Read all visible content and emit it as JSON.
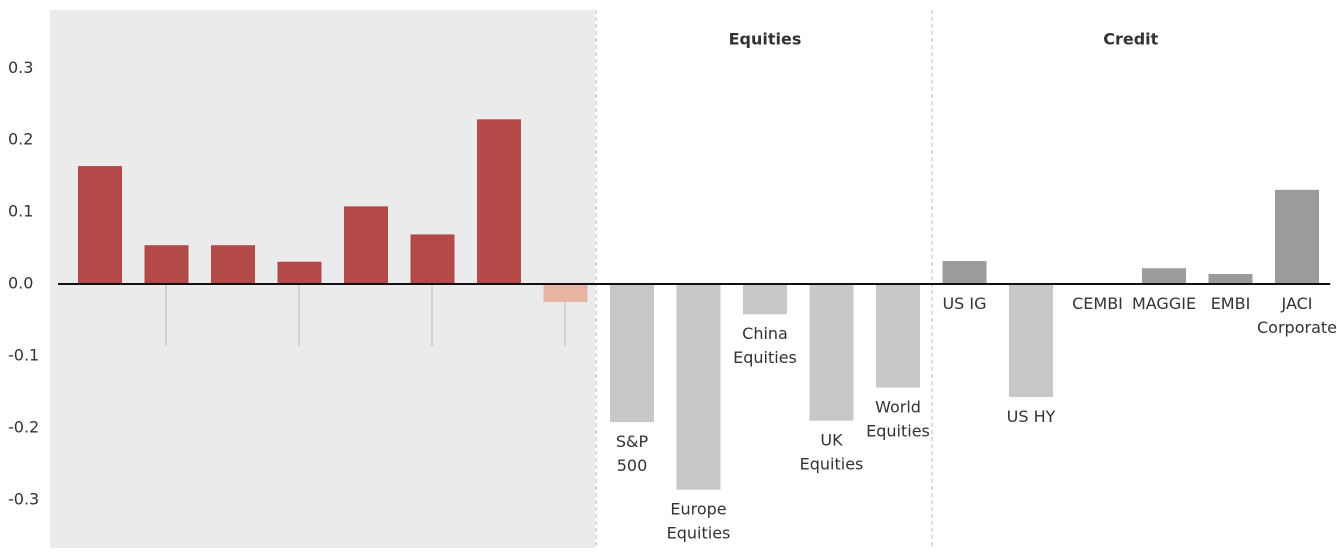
{
  "chart_data": {
    "type": "bar",
    "groups": [
      {
        "label": "Equities",
        "from": 8,
        "to": 12
      },
      {
        "label": "Credit",
        "from": 13,
        "to": 18
      }
    ],
    "categories": [
      null,
      null,
      null,
      null,
      null,
      null,
      null,
      null,
      "S&P\n500",
      "Europe\nEquities",
      "China\nEquities",
      "UK\nEquities",
      "World\nEquities",
      "US IG",
      "US HY",
      "CEMBI",
      "MAGGIE",
      "EMBI",
      "JACI\nCorporate"
    ],
    "values": [
      0.164,
      0.054,
      0.054,
      0.031,
      0.108,
      0.069,
      0.229,
      -0.025,
      -0.192,
      -0.286,
      -0.042,
      -0.19,
      -0.144,
      0.032,
      -0.157,
      0,
      0.022,
      0.014,
      0.131
    ],
    "colors": [
      "#b34a48",
      "#b34a48",
      "#b34a48",
      "#b34a48",
      "#b34a48",
      "#b34a48",
      "#b34a48",
      "#e8b5a5",
      "#c8c8c8",
      "#c8c8c8",
      "#c8c8c8",
      "#c8c8c8",
      "#c8c8c8",
      "#9b9b9d",
      "#c8c8c8",
      "#9b9b9d",
      "#9b9b9d",
      "#9b9b9d",
      "#9b9b9d"
    ],
    "ylim": [
      -0.367,
      0.381
    ],
    "yticks": [
      -0.3,
      -0.2,
      -0.1,
      {
        "value": 0,
        "label": "0.0"
      },
      0.1,
      0.2,
      0.3
    ],
    "grid": false
  }
}
